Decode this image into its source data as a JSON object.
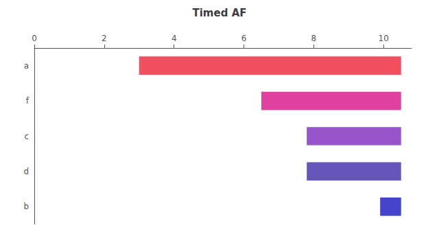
{
  "chart_data": {
    "type": "bar",
    "orientation": "horizontal",
    "title": "Timed AF",
    "categories": [
      "a",
      "f",
      "c",
      "d",
      "b"
    ],
    "starts": [
      3.0,
      6.5,
      7.8,
      7.8,
      9.9
    ],
    "ends": [
      10.5,
      10.5,
      10.5,
      10.5,
      10.5
    ],
    "colors": [
      "#f05060",
      "#e040a0",
      "#9955cc",
      "#6655bb",
      "#4444cc"
    ],
    "xlim": [
      0,
      10.8
    ],
    "xticks": [
      0,
      2,
      4,
      6,
      8,
      10
    ],
    "grid": false
  }
}
